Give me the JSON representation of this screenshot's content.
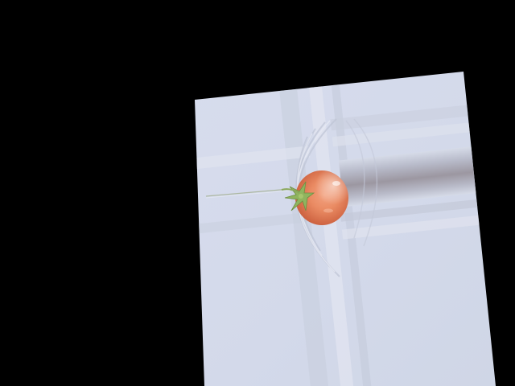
{
  "scene": {
    "background_color": "#000000",
    "surface_color": "#d2d9ea",
    "subject": "tomato-icon"
  }
}
